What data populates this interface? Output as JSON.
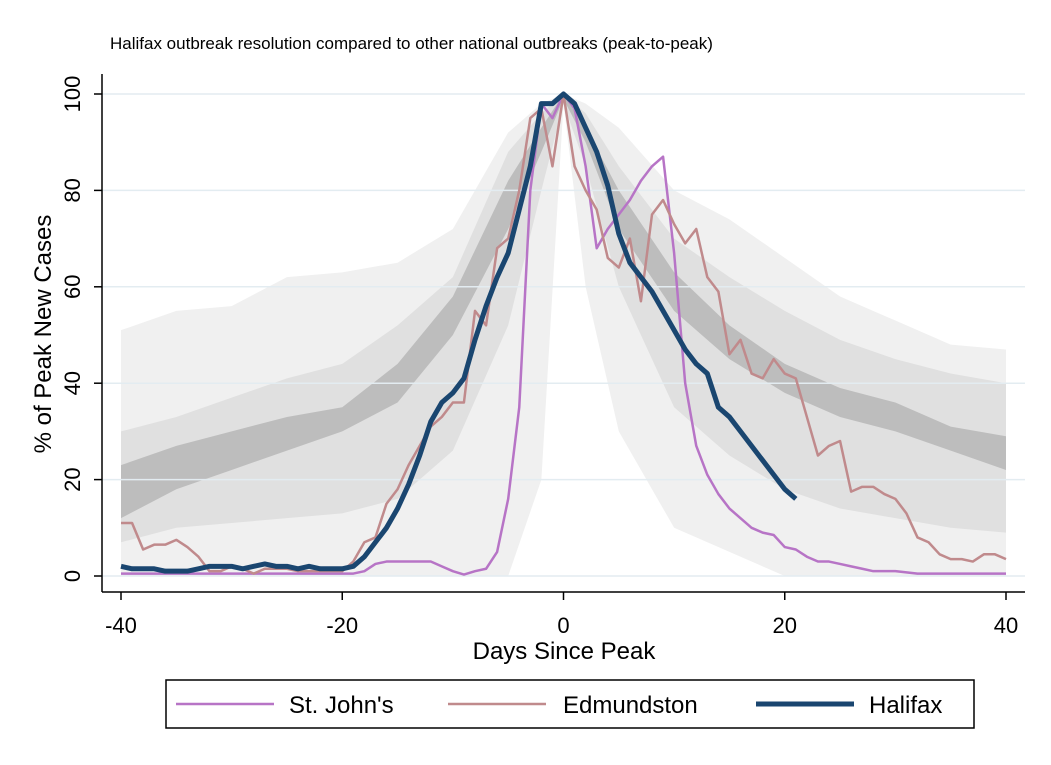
{
  "chart_data": {
    "type": "line",
    "title": "Halifax outbreak resolution compared to other national outbreaks (peak-to-peak)",
    "xlabel": "Days Since Peak",
    "ylabel": "% of Peak New Cases",
    "xlim": [
      -40,
      40
    ],
    "ylim": [
      0,
      100
    ],
    "xticks": [
      -40,
      -20,
      0,
      20,
      40
    ],
    "yticks": [
      0,
      20,
      40,
      60,
      80,
      100
    ],
    "grid": true,
    "legend_position": "bottom",
    "bands": {
      "x": [
        -40,
        -35,
        -30,
        -25,
        -20,
        -15,
        -10,
        -5,
        -2,
        0,
        2,
        5,
        10,
        15,
        20,
        25,
        30,
        35,
        40
      ],
      "outer_low": [
        0,
        0,
        0,
        0,
        0,
        0,
        0,
        0,
        20,
        98,
        60,
        30,
        10,
        5,
        0,
        0,
        0,
        0,
        0
      ],
      "outer_high": [
        51,
        55,
        56,
        62,
        63,
        65,
        72,
        92,
        98,
        100,
        98,
        93,
        80,
        74,
        66,
        58,
        53,
        48,
        47
      ],
      "mid_low": [
        7,
        10,
        11,
        12,
        13,
        16,
        26,
        52,
        80,
        98,
        85,
        60,
        35,
        25,
        18,
        14,
        12,
        10,
        9
      ],
      "mid_high": [
        30,
        33,
        37,
        41,
        44,
        52,
        62,
        88,
        96,
        100,
        96,
        85,
        70,
        62,
        55,
        49,
        45,
        42,
        40
      ],
      "core_low": [
        12,
        18,
        22,
        26,
        30,
        36,
        50,
        72,
        88,
        99,
        90,
        72,
        55,
        45,
        38,
        33,
        30,
        26,
        22
      ],
      "core_high": [
        23,
        27,
        30,
        33,
        35,
        44,
        58,
        82,
        93,
        100,
        93,
        80,
        63,
        52,
        44,
        39,
        36,
        31,
        29
      ]
    },
    "series": [
      {
        "name": "St. John's",
        "color": "#b774c6",
        "x": [
          -40,
          -30,
          -25,
          -20,
          -19,
          -18,
          -17,
          -16,
          -15,
          -14,
          -13,
          -12,
          -11,
          -10,
          -9,
          -8,
          -7,
          -6,
          -5,
          -4,
          -3,
          -2,
          -1,
          0,
          1,
          2,
          3,
          4,
          5,
          6,
          7,
          8,
          9,
          10,
          11,
          12,
          13,
          14,
          15,
          16,
          17,
          18,
          19,
          20,
          21,
          22,
          23,
          24,
          25,
          26,
          27,
          28,
          29,
          30,
          32,
          34,
          36,
          38,
          40
        ],
        "y": [
          0.5,
          0.5,
          0.5,
          0.5,
          0.5,
          1,
          2.5,
          3,
          3,
          3,
          3,
          3,
          2,
          1,
          0.3,
          1,
          1.5,
          5,
          16,
          35,
          80,
          98,
          95,
          100,
          97,
          85,
          68,
          72,
          75,
          78,
          82,
          85,
          87,
          67,
          40,
          27,
          21,
          17,
          14,
          12,
          10,
          9,
          8.5,
          6,
          5.5,
          4,
          3,
          3,
          2.5,
          2,
          1.5,
          1,
          1,
          1,
          0.5,
          0.5,
          0.5,
          0.5,
          0.5
        ]
      },
      {
        "name": "Edmundston",
        "color": "#c08a8c",
        "x": [
          -40,
          -39,
          -38,
          -37,
          -36,
          -35,
          -34,
          -33,
          -32,
          -31,
          -30,
          -29,
          -28,
          -27,
          -26,
          -25,
          -24,
          -23,
          -22,
          -21,
          -20,
          -19,
          -18,
          -17,
          -16,
          -15,
          -14,
          -13,
          -12,
          -11,
          -10,
          -9,
          -8,
          -7,
          -6,
          -5,
          -4,
          -3,
          -2,
          -1,
          0,
          1,
          2,
          3,
          4,
          5,
          6,
          7,
          8,
          9,
          10,
          11,
          12,
          13,
          14,
          15,
          16,
          17,
          18,
          19,
          20,
          21,
          22,
          23,
          24,
          25,
          26,
          27,
          28,
          29,
          30,
          31,
          32,
          33,
          34,
          35,
          36,
          37,
          38,
          39,
          40
        ],
        "y": [
          11,
          11,
          5.5,
          6.5,
          6.5,
          7.5,
          6,
          4,
          1,
          1,
          2,
          1.5,
          0.5,
          1.5,
          1.5,
          1.5,
          1,
          1,
          1,
          1,
          1,
          3,
          7,
          8,
          15,
          18,
          23,
          27,
          31,
          33,
          36,
          36,
          55,
          52,
          68,
          70,
          80,
          95,
          97,
          85,
          100,
          85,
          80,
          76,
          66,
          64,
          70,
          57,
          75,
          78,
          73,
          69,
          72,
          62,
          59,
          46,
          49,
          42,
          41,
          45,
          42,
          41,
          33,
          25,
          27,
          28,
          17.5,
          18.5,
          18.5,
          17,
          16,
          13,
          8,
          7,
          4.5,
          3.5,
          3.5,
          3,
          4.5,
          4.5,
          3.5
        ]
      },
      {
        "name": "Halifax",
        "color": "#1a4670",
        "x": [
          -40,
          -39,
          -38,
          -37,
          -36,
          -35,
          -34,
          -33,
          -32,
          -31,
          -30,
          -29,
          -28,
          -27,
          -26,
          -25,
          -24,
          -23,
          -22,
          -21,
          -20,
          -19,
          -18,
          -17,
          -16,
          -15,
          -14,
          -13,
          -12,
          -11,
          -10,
          -9,
          -8,
          -7,
          -6,
          -5,
          -4,
          -3,
          -2,
          -1,
          0,
          1,
          2,
          3,
          4,
          5,
          6,
          7,
          8,
          9,
          10,
          11,
          12,
          13,
          14,
          15,
          16,
          17,
          18,
          19,
          20,
          21
        ],
        "y": [
          2,
          1.5,
          1.5,
          1.5,
          1,
          1,
          1,
          1.5,
          2,
          2,
          2,
          1.5,
          2,
          2.5,
          2,
          2,
          1.5,
          2,
          1.5,
          1.5,
          1.5,
          2,
          4,
          7,
          10,
          14,
          19,
          25,
          32,
          36,
          38,
          41,
          49,
          56,
          62,
          67,
          76,
          85,
          98,
          98,
          100,
          98,
          93,
          88,
          81,
          71,
          65,
          62,
          59,
          55,
          51,
          47,
          44,
          42,
          35,
          33,
          30,
          27,
          24,
          21,
          18,
          16
        ]
      }
    ]
  }
}
